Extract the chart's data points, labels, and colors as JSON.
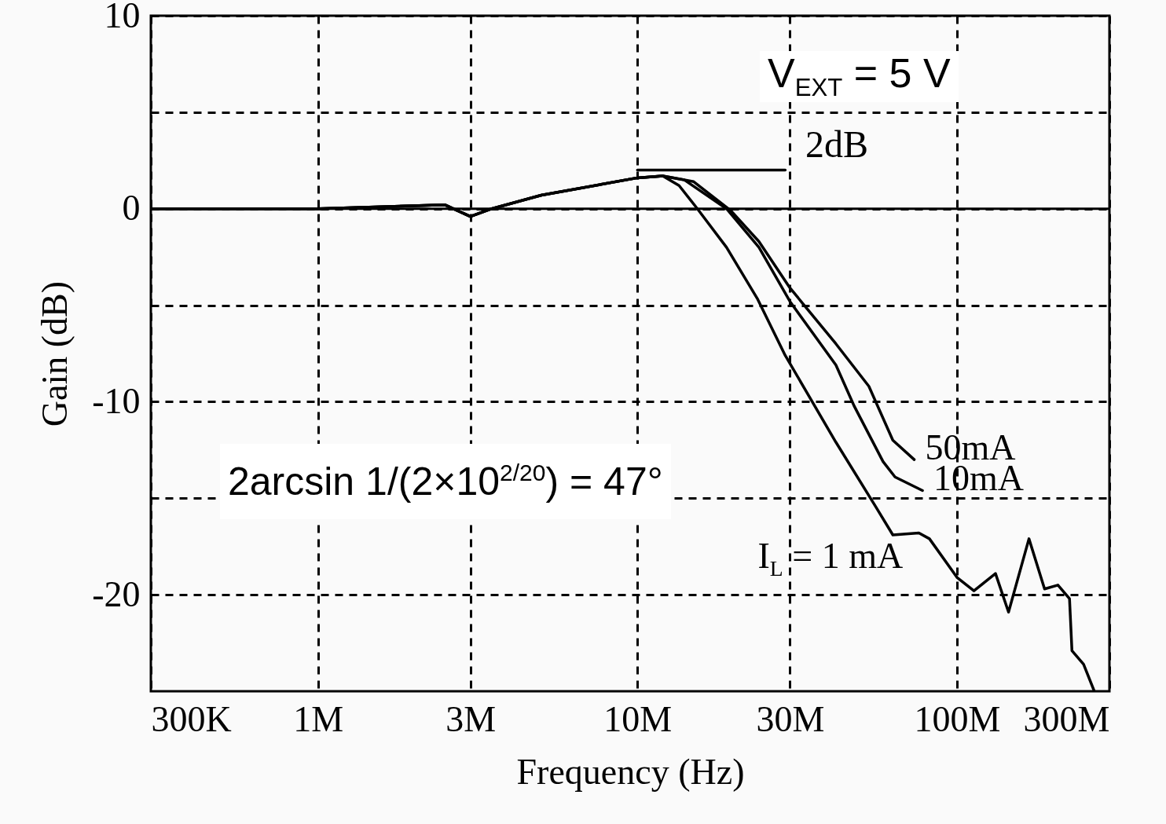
{
  "chart_data": {
    "type": "line",
    "xlabel": "Frequency (Hz)",
    "ylabel": "Gain (dB)",
    "log": "x",
    "grid": true,
    "line_style": "solid",
    "xlim": [
      300000,
      300000000
    ],
    "xticks": [
      {
        "value": 300000,
        "label": "300K"
      },
      {
        "value": 1000000,
        "label": "1M"
      },
      {
        "value": 3000000,
        "label": "3M"
      },
      {
        "value": 10000000,
        "label": "10M"
      },
      {
        "value": 30000000,
        "label": "30M"
      },
      {
        "value": 100000000,
        "label": "100M"
      },
      {
        "value": 300000000,
        "label": "300M"
      }
    ],
    "ylim": [
      -25,
      10
    ],
    "yticks": [
      -20,
      {
        "value": -15,
        "label": null
      },
      -10,
      {
        "value": -5,
        "label": null
      },
      0,
      {
        "value": 5,
        "label": null
      },
      10
    ],
    "ref_lines": [
      {
        "axis": "y",
        "value": 0,
        "color": "#000000"
      }
    ],
    "annotations": [
      "V$_{EXT}$ = 5 V",
      "2dB",
      "2arcsin 1/(2×10$^{2/20}$) = 47°"
    ],
    "series": [
      {
        "name": "I$_{L}$ = 1 mA",
        "color": "#000000",
        "x": [
          300000,
          1000000,
          2500000,
          3000000,
          3500000,
          5000000,
          10000000,
          12000000,
          13500000,
          15400000,
          19000000,
          23800000,
          29000000,
          41800000,
          55500000,
          63000000,
          76000000,
          82000000,
          100000000,
          113000000,
          132000000,
          145000000,
          168000000,
          188000000,
          207000000,
          225000000,
          229000000,
          249000000,
          269000000
        ],
        "values": [
          0,
          0,
          0.2,
          -0.4,
          0,
          0.7,
          1.6,
          1.7,
          1.2,
          0,
          -2,
          -4.7,
          -7.6,
          -12.1,
          -15.4,
          -16.9,
          -16.8,
          -17.1,
          -19.1,
          -19.8,
          -18.9,
          -20.9,
          -17.1,
          -19.7,
          -19.5,
          -20.2,
          -22.9,
          -23.6,
          -25
        ]
      },
      {
        "name": "10mA",
        "color": "#000000",
        "x": [
          300000,
          1000000,
          2500000,
          3000000,
          3500000,
          5000000,
          10000000,
          12000000,
          14000000,
          19000000,
          24000000,
          30000000,
          41800000,
          47600000,
          58700000,
          64000000,
          78000000
        ],
        "values": [
          0,
          0,
          0.2,
          -0.4,
          0,
          0.7,
          1.6,
          1.7,
          1.5,
          0,
          -2,
          -4.8,
          -8.1,
          -10.2,
          -13.1,
          -13.9,
          -14.6
        ]
      },
      {
        "name": "50mA",
        "color": "#000000",
        "x": [
          300000,
          1000000,
          2500000,
          3000000,
          3500000,
          5000000,
          10000000,
          12000000,
          15000000,
          19600000,
          24000000,
          30000000,
          41800000,
          53000000,
          63000000,
          73500000
        ],
        "values": [
          0,
          0,
          0.2,
          -0.4,
          0,
          0.7,
          1.6,
          1.7,
          1.4,
          -0.1,
          -1.7,
          -4.1,
          -7,
          -9.2,
          -12,
          -13
        ]
      },
      {
        "color": "#000000",
        "x": [
          10000000,
          29000000
        ],
        "values": [
          2,
          2
        ]
      }
    ]
  }
}
